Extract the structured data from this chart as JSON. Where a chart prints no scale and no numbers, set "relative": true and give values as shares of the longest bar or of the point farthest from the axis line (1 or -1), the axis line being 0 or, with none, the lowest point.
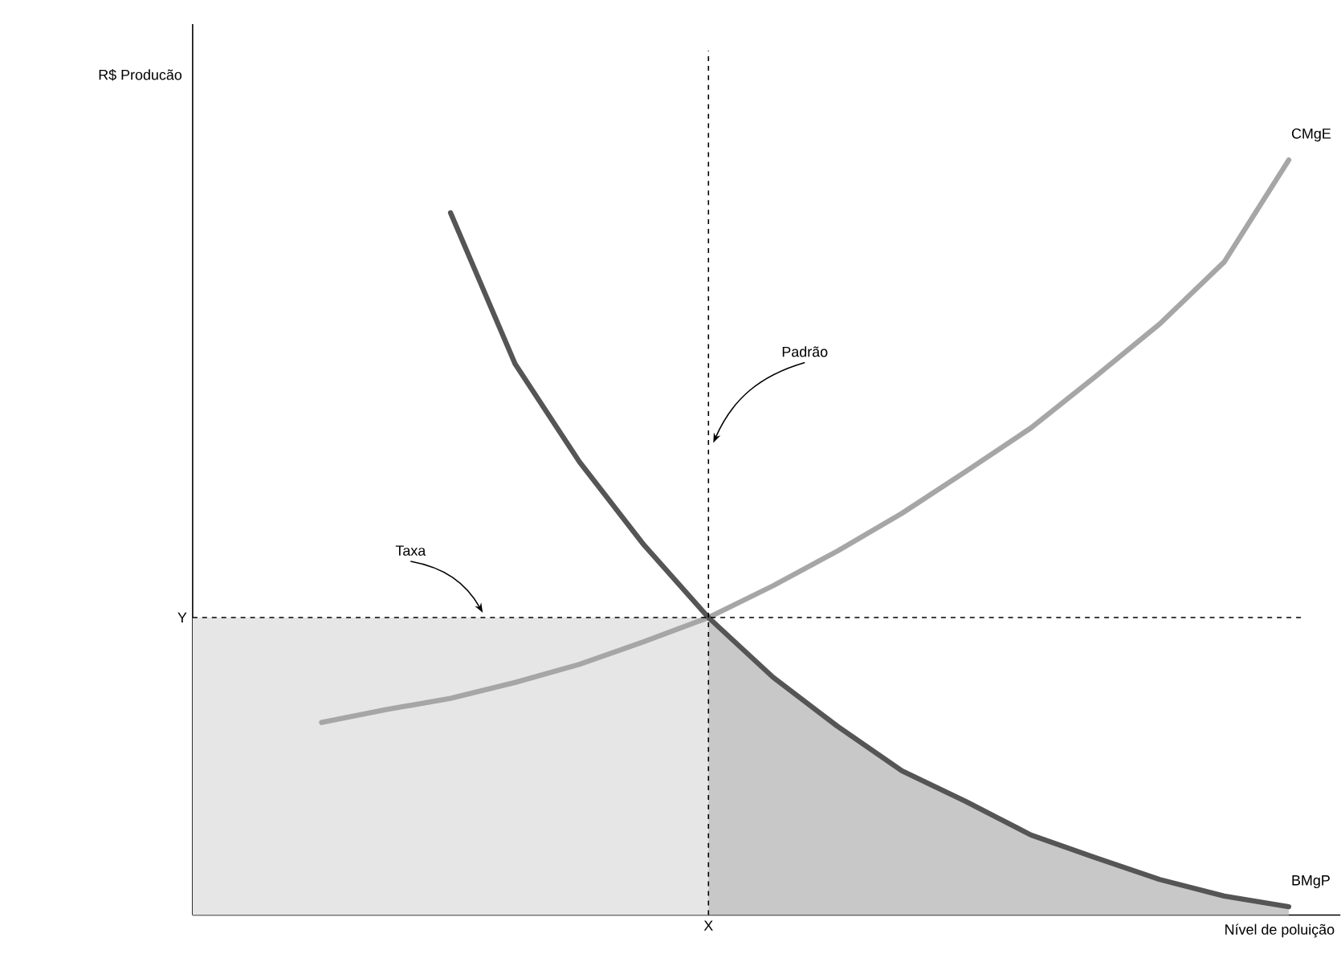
{
  "chart_data": {
    "type": "line",
    "relative": true,
    "xlabel": "Nível de poluição",
    "categories": [
      null,
      null,
      null,
      null,
      null,
      null,
      null,
      null,
      null,
      null,
      null,
      null,
      null,
      null,
      null,
      null,
      null,
      null
    ],
    "series": [
      {
        "type": "area",
        "color": "#e6e6e6",
        "values": [
          0.394,
          0.394,
          0.394,
          0.394,
          0.394,
          0.394,
          0.394,
          0.394,
          0.394,
          null,
          null,
          null,
          null,
          null,
          null,
          null,
          null,
          null
        ]
      },
      {
        "type": "area",
        "color": "#c8c8c8",
        "values": [
          null,
          null,
          null,
          null,
          null,
          null,
          null,
          null,
          0.394,
          0.315,
          0.25,
          0.191,
          0.15,
          0.106,
          0.076,
          0.047,
          0.025,
          0.011
        ]
      },
      {
        "name": "CMgE",
        "color": "#a6a6a6",
        "values": [
          null,
          null,
          0.255,
          0.272,
          0.287,
          0.308,
          0.332,
          0.362,
          0.394,
          0.436,
          0.482,
          0.532,
          0.588,
          0.645,
          0.713,
          0.783,
          0.865,
          1.0
        ]
      },
      {
        "name": "BMgP",
        "color": "#555555",
        "values": [
          null,
          null,
          null,
          null,
          0.93,
          0.73,
          0.6,
          0.49,
          0.394,
          0.315,
          0.25,
          0.191,
          0.15,
          0.106,
          0.076,
          0.047,
          0.025,
          0.011
        ]
      }
    ],
    "ref_lines": [
      {
        "axis": "x",
        "label": "X",
        "line_style": "dashed"
      },
      {
        "axis": "y",
        "value": 0.394,
        "label": "Y",
        "line_style": "dashed"
      }
    ],
    "annotations": [
      "Padrão",
      "Taxa",
      "R$ Producão"
    ]
  }
}
